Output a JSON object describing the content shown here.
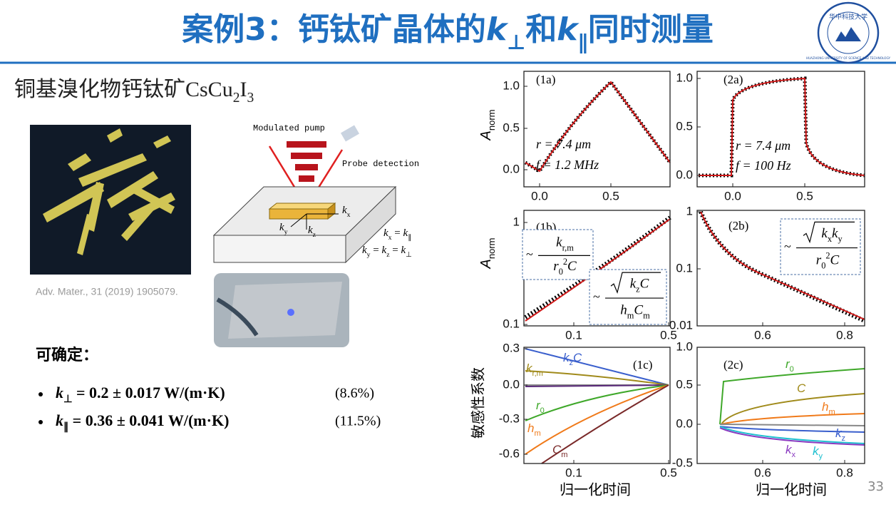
{
  "header": {
    "title": [
      {
        "base": "案例3：钙钛矿晶体的"
      },
      {
        "base": "k",
        "sub": "⊥"
      },
      {
        "base": "和"
      },
      {
        "base": "k",
        "sub": "∥"
      },
      {
        "base": "同时测量"
      }
    ],
    "logo_text": "华中科技大学",
    "logo_ring": "HUAZHONG UNIVERSITY OF SCIENCE AND TECHNOLOGY"
  },
  "left": {
    "heading": [
      {
        "base": "铜基溴化物钙钛矿CsCu",
        "sub": "2"
      },
      {
        "base": "I",
        "sub": "3"
      }
    ],
    "citation": "Adv. Mater., 31 (2019) 1905079.",
    "conclusion_label": "可确定：",
    "bullets": [
      {
        "terms": [
          {
            "base": "k",
            "sub": "⊥"
          },
          {
            "base": " = 0.2 ± 0.017 W/(m·K)"
          }
        ],
        "pct": "(8.6%)"
      },
      {
        "terms": [
          {
            "base": "k",
            "sub": "∥"
          },
          {
            "base": " = 0.36 ± 0.041 W/(m·K)"
          }
        ],
        "pct": "(11.5%)"
      }
    ]
  },
  "diagram": {
    "pump": "Modulated pump",
    "probe": "Probe detection",
    "kx": [
      {
        "base": "k",
        "sub": "x"
      }
    ],
    "ky": [
      {
        "base": "k",
        "sub": "y"
      }
    ],
    "kz": [
      {
        "base": "k",
        "sub": "z"
      }
    ],
    "eq1": [
      {
        "base": "k",
        "sub": "x"
      },
      {
        "base": " = "
      },
      {
        "base": "k",
        "sub": "∥"
      }
    ],
    "eq2": [
      {
        "base": "k",
        "sub": "y"
      },
      {
        "base": " = "
      },
      {
        "base": "k",
        "sub": "z"
      },
      {
        "base": " = "
      },
      {
        "base": "k",
        "sub": "⊥"
      }
    ]
  },
  "figure": {
    "panels": [
      {
        "label": "(1a)",
        "yticks": [
          "1.0",
          "0.5",
          "0.0"
        ],
        "xticks": [
          "0.0",
          "0.5"
        ],
        "ylabel": [
          {
            "base": "A",
            "sub": "norm"
          }
        ],
        "annotations": [
          "r = 7.4 μm",
          "f = 1.2 MHz"
        ]
      },
      {
        "label": "(2a)",
        "yticks": [
          "1.0",
          "0.5",
          "0.0"
        ],
        "xticks": [
          "0.0",
          "0.5"
        ],
        "annotations": [
          "r = 7.4 μm",
          "f = 100 Hz"
        ]
      },
      {
        "label": "(1b)",
        "yticks": [
          "1",
          "0.1"
        ],
        "xticks": [
          "0.1",
          "0.5"
        ],
        "ylabel": [
          {
            "base": "A",
            "sub": "norm"
          }
        ],
        "formulas": [
          {
            "prefix": "~",
            "num": [
              {
                "base": "k",
                "sub": "r,m"
              }
            ],
            "den": [
              {
                "base": "r",
                "sub": "0",
                "sup": "2"
              },
              {
                "base": "C"
              }
            ]
          },
          {
            "prefix": "~",
            "sqrt": true,
            "num": [
              {
                "base": "k",
                "sub": "z"
              },
              {
                "base": "C"
              }
            ],
            "den": [
              {
                "base": "h",
                "sub": "m"
              },
              {
                "base": "C",
                "sub": "m"
              }
            ]
          }
        ]
      },
      {
        "label": "(2b)",
        "yticks": [
          "1",
          "0.1",
          "0.01"
        ],
        "xticks": [
          "0.6",
          "0.8"
        ],
        "formulas": [
          {
            "prefix": "~",
            "sqrt": true,
            "num": [
              {
                "base": "k",
                "sub": "x"
              },
              {
                "base": "k",
                "sub": "y"
              }
            ],
            "den": [
              {
                "base": "r",
                "sub": "0",
                "sup": "2"
              },
              {
                "base": "C"
              }
            ]
          }
        ]
      },
      {
        "label": "(1c)",
        "yticks": [
          "0.3",
          "0.0",
          "-0.3",
          "-0.6"
        ],
        "xticks": [
          "0.1",
          "0.5"
        ],
        "ylabel": "敏感性系数",
        "xlabel": "归一化时间",
        "curve_labels": [
          {
            "terms": [
              {
                "base": "k",
                "sub": "z"
              },
              {
                "base": "C"
              }
            ],
            "color": "#3a5fcd"
          },
          {
            "terms": [
              {
                "base": "k",
                "sub": "r,m"
              }
            ],
            "color": "#a08a1a"
          },
          {
            "terms": [
              {
                "base": "r",
                "sub": "0"
              }
            ],
            "color": "#3fa82a"
          },
          {
            "terms": [
              {
                "base": "h",
                "sub": "m"
              }
            ],
            "color": "#f07a1a"
          },
          {
            "terms": [
              {
                "base": "C",
                "sub": "m"
              }
            ],
            "color": "#7a2a2a"
          }
        ]
      },
      {
        "label": "(2c)",
        "yticks": [
          "1.0",
          "0.5",
          "0.0",
          "-0.5"
        ],
        "xticks": [
          "0.6",
          "0.8"
        ],
        "xlabel": "归一化时间",
        "curve_labels": [
          {
            "terms": [
              {
                "base": "r",
                "sub": "0"
              }
            ],
            "color": "#3fa82a"
          },
          {
            "terms": [
              {
                "base": "C"
              }
            ],
            "color": "#a08a1a"
          },
          {
            "terms": [
              {
                "base": "h",
                "sub": "m"
              }
            ],
            "color": "#f07a1a"
          },
          {
            "terms": [
              {
                "base": "k",
                "sub": "z"
              }
            ],
            "color": "#3a5fcd"
          },
          {
            "terms": [
              {
                "base": "k",
                "sub": "x"
              }
            ],
            "color": "#8a3ac0"
          },
          {
            "terms": [
              {
                "base": "k",
                "sub": "y"
              }
            ],
            "color": "#20c0d0"
          }
        ]
      }
    ]
  },
  "page_number": "33"
}
